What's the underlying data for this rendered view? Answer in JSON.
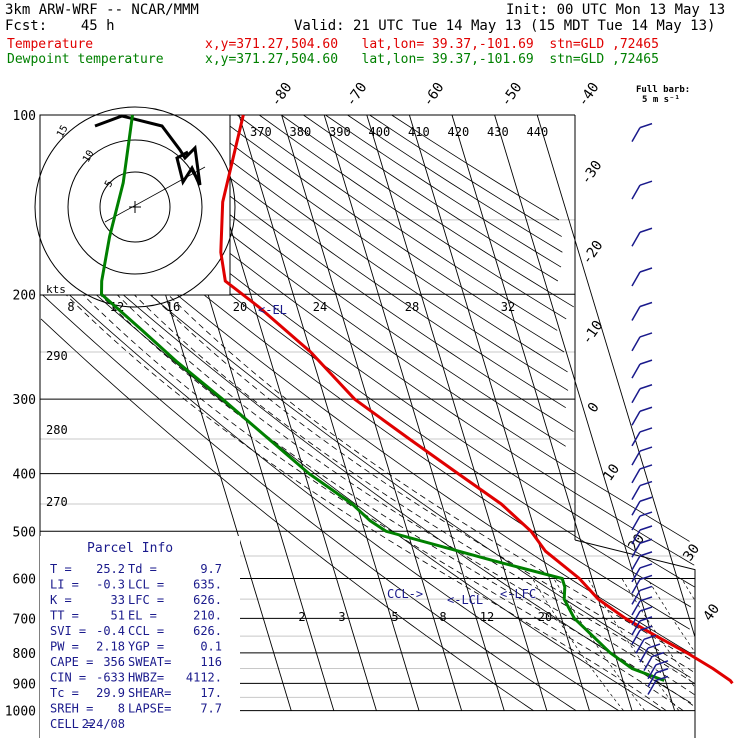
{
  "header": {
    "model": "3km ARW-WRF -- NCAR/MMM",
    "init": "Init: 00 UTC Mon 13 May 13",
    "fcst": "Fcst:    45 h",
    "valid": "Valid: 21 UTC Tue 14 May 13 (15 MDT Tue 14 May 13)",
    "temp_label": "Temperature",
    "dew_label": "Dewpoint temperature",
    "temp_loc": "x,y=371.27,504.60   lat,lon= 39.37,-101.69  stn=GLD ,72465",
    "dew_loc": "x,y=371.27,504.60   lat,lon= 39.37,-101.69  stn=GLD ,72465"
  },
  "barb_legend": {
    "line1": "Full barb:",
    "line2": "5 m s⁻¹"
  },
  "hodograph": {
    "units": "kts",
    "ring_labels": [
      "5",
      "10",
      "15"
    ]
  },
  "parcel_info": {
    "title": "Parcel Info",
    "rows": [
      [
        "T   =",
        "25.2",
        "Td  =",
        "9.7"
      ],
      [
        "LI  =",
        "-0.3",
        "LCL =",
        "635."
      ],
      [
        "K   =",
        "33",
        "LFC =",
        "626."
      ],
      [
        "TT  =",
        "51",
        "EL  =",
        "210."
      ],
      [
        "SVI =",
        "-0.4",
        "CCL =",
        "626."
      ],
      [
        "PW  =",
        "2.18",
        "YGP =",
        "0.1"
      ],
      [
        "CAPE =",
        "356",
        "SWEAT=",
        "116"
      ],
      [
        "CIN  =",
        "-633",
        "HWBZ=",
        "4112."
      ],
      [
        "Tc   =",
        "29.9",
        "SHEAR=",
        "17."
      ],
      [
        "SREH =",
        "8",
        "LAPSE=",
        "7.7"
      ],
      [
        "CELL =",
        "224/08",
        "",
        ""
      ]
    ]
  },
  "annotations": {
    "el": "<-EL",
    "ccl": "CCL->",
    "lcl": "<-LCL",
    "lfc": "<-LFC"
  },
  "chart_data": {
    "type": "line",
    "title": "Skew-T log-P sounding",
    "pressure_levels": [
      100,
      200,
      300,
      400,
      500,
      600,
      700,
      800,
      900,
      1000
    ],
    "pressure_tick_labels": [
      "100",
      "200",
      "300",
      "400",
      "500",
      "600",
      "700",
      "800",
      "900",
      "1000"
    ],
    "isotherm_labels": [
      "-80",
      "-70",
      "-60",
      "-50",
      "-40",
      "-30",
      "-20",
      "-10",
      "0",
      "10",
      "20",
      "30",
      "40"
    ],
    "isotherm_values": [
      -80,
      -70,
      -60,
      -50,
      -40,
      -30,
      -20,
      -10,
      0,
      10,
      20,
      30,
      40
    ],
    "theta_e_labels": [
      "370",
      "380",
      "390",
      "400",
      "410",
      "420",
      "430",
      "440"
    ],
    "dry_adiabat_labels": [
      "290",
      "280",
      "270"
    ],
    "moist_adiabat_labels": [
      "8",
      "12",
      "16",
      "20",
      "24",
      "28",
      "32"
    ],
    "mixing_ratio_labels": [
      "2",
      "3",
      "5",
      "8",
      "12",
      "20"
    ],
    "series": [
      {
        "name": "Temperature",
        "color": "#e00000",
        "points": [
          [
            100,
            -49
          ],
          [
            140,
            -60
          ],
          [
            170,
            -64
          ],
          [
            190,
            -65
          ],
          [
            210,
            -59
          ],
          [
            250,
            -50
          ],
          [
            300,
            -43
          ],
          [
            350,
            -33
          ],
          [
            400,
            -24
          ],
          [
            450,
            -16
          ],
          [
            500,
            -11
          ],
          [
            540,
            -9
          ],
          [
            600,
            -3
          ],
          [
            650,
            0
          ],
          [
            700,
            5
          ],
          [
            750,
            11
          ],
          [
            800,
            17
          ],
          [
            850,
            22
          ],
          [
            890,
            25.2
          ],
          [
            900,
            25.5
          ]
        ]
      },
      {
        "name": "Dewpoint temperature",
        "color": "#008000",
        "points": [
          [
            100,
            -75
          ],
          [
            130,
            -82
          ],
          [
            160,
            -89
          ],
          [
            190,
            -94
          ],
          [
            200,
            -95
          ],
          [
            230,
            -88
          ],
          [
            260,
            -82
          ],
          [
            300,
            -74
          ],
          [
            400,
            -59
          ],
          [
            450,
            -51
          ],
          [
            480,
            -48
          ],
          [
            500,
            -45
          ],
          [
            560,
            -22
          ],
          [
            600,
            -7
          ],
          [
            620,
            -7
          ],
          [
            650,
            -8
          ],
          [
            700,
            -7
          ],
          [
            800,
            -1
          ],
          [
            850,
            3
          ],
          [
            880,
            8
          ],
          [
            890,
            9.7
          ]
        ]
      }
    ],
    "wind_barbs_count": 31,
    "xlabel": "Temperature (°C)",
    "ylabel": "Pressure (hPa)"
  }
}
